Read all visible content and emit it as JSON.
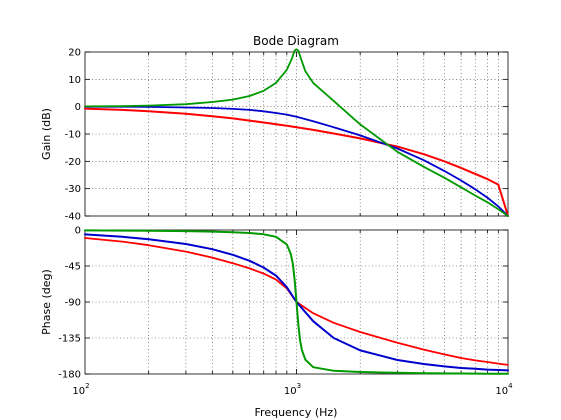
{
  "chart_data": {
    "type": "line",
    "title": "Bode Diagram",
    "xlabel": "Frequency  (Hz)",
    "x_scale": "log",
    "xlim": [
      100,
      10000
    ],
    "x_ticks": [
      100,
      1000,
      10000
    ],
    "x_tick_labels": [
      {
        "base": "10",
        "exp": "2"
      },
      {
        "base": "10",
        "exp": "3"
      },
      {
        "base": "10",
        "exp": "4"
      }
    ],
    "grid": true,
    "panels": [
      {
        "id": "gain",
        "ylabel": "Gain (dB)",
        "ylim": [
          -40,
          20
        ],
        "y_ticks": [
          20,
          10,
          0,
          -10,
          -20,
          -30,
          -40
        ],
        "y_tick_labels": [
          "20",
          "10",
          "0",
          "-10",
          "-20",
          "-30",
          "-40"
        ],
        "series": [
          {
            "color": "#ff0000",
            "stroke": 2.0,
            "x": [
              100,
              150,
              200,
              300,
              400,
              500,
              600,
              700,
              800,
              900,
              1000,
              1200,
              1500,
              2000,
              3000,
              4000,
              5000,
              6000,
              7000,
              8000,
              9000,
              10000
            ],
            "y": [
              -0.7,
              -1.2,
              -1.7,
              -2.6,
              -3.5,
              -4.3,
              -5.1,
              -5.8,
              -6.4,
              -7.0,
              -7.5,
              -8.5,
              -9.8,
              -11.6,
              -14.6,
              -17.4,
              -20.0,
              -22.4,
              -24.6,
              -26.5,
              -28.5,
              -40.0
            ]
          },
          {
            "color": "#0000cc",
            "stroke": 1.8,
            "x": [
              100,
              150,
              200,
              300,
              400,
              500,
              600,
              700,
              800,
              900,
              1000,
              1200,
              1500,
              2000,
              3000,
              4000,
              5000,
              6000,
              7000,
              8000,
              9000,
              10000
            ],
            "y": [
              0.0,
              0.0,
              -0.1,
              -0.3,
              -0.5,
              -0.8,
              -1.2,
              -1.7,
              -2.3,
              -2.9,
              -3.7,
              -5.3,
              -7.5,
              -10.5,
              -15.3,
              -19.6,
              -23.5,
              -27.0,
              -30.2,
              -33.3,
              -36.5,
              -40.0
            ]
          },
          {
            "color": "#009900",
            "stroke": 1.8,
            "x": [
              100,
              150,
              200,
              300,
              400,
              500,
              600,
              700,
              800,
              900,
              950,
              980,
              1000,
              1020,
              1050,
              1100,
              1200,
              1500,
              2000,
              3000,
              4000,
              5000,
              6000,
              7000,
              8000,
              9000,
              10000
            ],
            "y": [
              0.1,
              0.2,
              0.4,
              0.9,
              1.7,
              2.6,
              3.9,
              5.8,
              8.7,
              13.5,
              17.5,
              20.5,
              21.0,
              20.5,
              17.5,
              13.0,
              8.7,
              2.1,
              -6.5,
              -16.5,
              -22.0,
              -26.0,
              -29.5,
              -32.5,
              -35.0,
              -37.5,
              -40.0
            ]
          }
        ]
      },
      {
        "id": "phase",
        "ylabel": "Phase (deg)",
        "ylim": [
          -180,
          0
        ],
        "y_ticks": [
          0,
          -45,
          -90,
          -135,
          -180
        ],
        "y_tick_labels": [
          "0",
          "-45",
          "-90",
          "-135",
          "-180"
        ],
        "series": [
          {
            "color": "#ff0000",
            "stroke": 1.8,
            "x": [
              100,
              150,
              200,
              300,
              400,
              500,
              600,
              700,
              800,
              900,
              1000,
              1200,
              1500,
              2000,
              3000,
              4000,
              5000,
              6000,
              7000,
              8000,
              9000,
              10000
            ],
            "y": [
              -10.0,
              -14.5,
              -19.0,
              -27.0,
              -34.5,
              -41.5,
              -48.0,
              -54.5,
              -62.0,
              -73.0,
              -90.0,
              -104.0,
              -116.0,
              -127.5,
              -141.0,
              -149.5,
              -155.5,
              -160.0,
              -163.0,
              -165.0,
              -167.0,
              -168.6
            ]
          },
          {
            "color": "#0000cc",
            "stroke": 2.0,
            "x": [
              100,
              150,
              200,
              300,
              400,
              500,
              600,
              700,
              800,
              900,
              1000,
              1200,
              1500,
              2000,
              3000,
              4000,
              5000,
              6000,
              7000,
              8000,
              9000,
              10000
            ],
            "y": [
              -5.5,
              -8.5,
              -11.5,
              -17.5,
              -24.0,
              -31.0,
              -38.5,
              -47.0,
              -57.0,
              -71.5,
              -90.0,
              -114.0,
              -135.0,
              -150.5,
              -162.5,
              -167.5,
              -170.5,
              -172.5,
              -173.5,
              -174.5,
              -175.0,
              -175.5
            ]
          },
          {
            "color": "#009900",
            "stroke": 2.0,
            "x": [
              100,
              150,
              200,
              300,
              400,
              500,
              600,
              700,
              800,
              900,
              940,
              960,
              980,
              1000,
              1020,
              1040,
              1060,
              1100,
              1200,
              1500,
              2000,
              3000,
              4000,
              5000,
              6000,
              7000,
              8000,
              9000,
              10000
            ],
            "y": [
              -0.5,
              -0.7,
              -0.9,
              -1.4,
              -2.0,
              -2.7,
              -3.7,
              -5.4,
              -8.5,
              -18.0,
              -30.0,
              -42.0,
              -62.0,
              -90.0,
              -118.0,
              -138.0,
              -150.0,
              -162.0,
              -171.5,
              -176.0,
              -177.5,
              -178.5,
              -179.0,
              -179.2,
              -179.4,
              -179.5,
              -179.6,
              -179.7,
              -179.8
            ]
          }
        ]
      }
    ]
  }
}
